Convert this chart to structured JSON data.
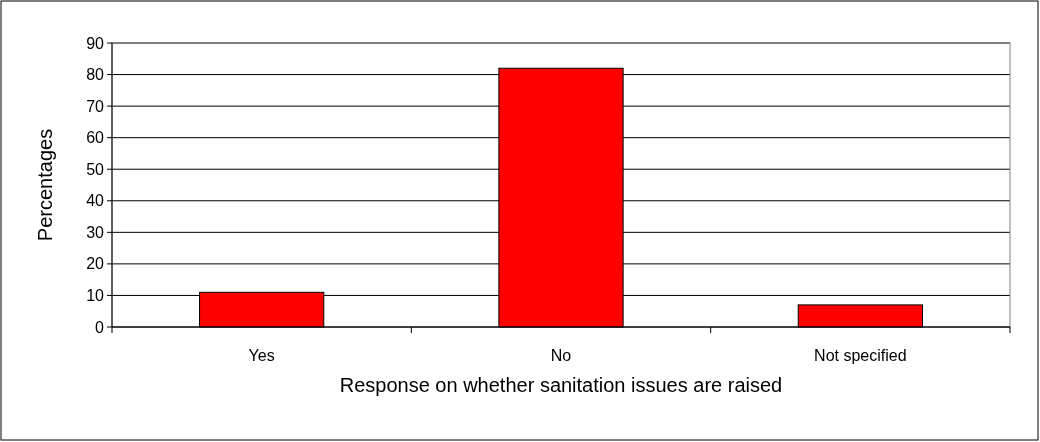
{
  "chart_data": {
    "type": "bar",
    "xlabel": "Response on whether sanitation issues are raised",
    "ylabel": "Percentages",
    "categories": [
      "Yes",
      "No",
      "Not specified"
    ],
    "values": [
      11,
      82,
      7
    ],
    "color": "#ff0000",
    "ylim": [
      0,
      90
    ],
    "yticks": [
      0,
      10,
      20,
      30,
      40,
      50,
      60,
      70,
      80,
      90
    ],
    "grid": "y"
  }
}
